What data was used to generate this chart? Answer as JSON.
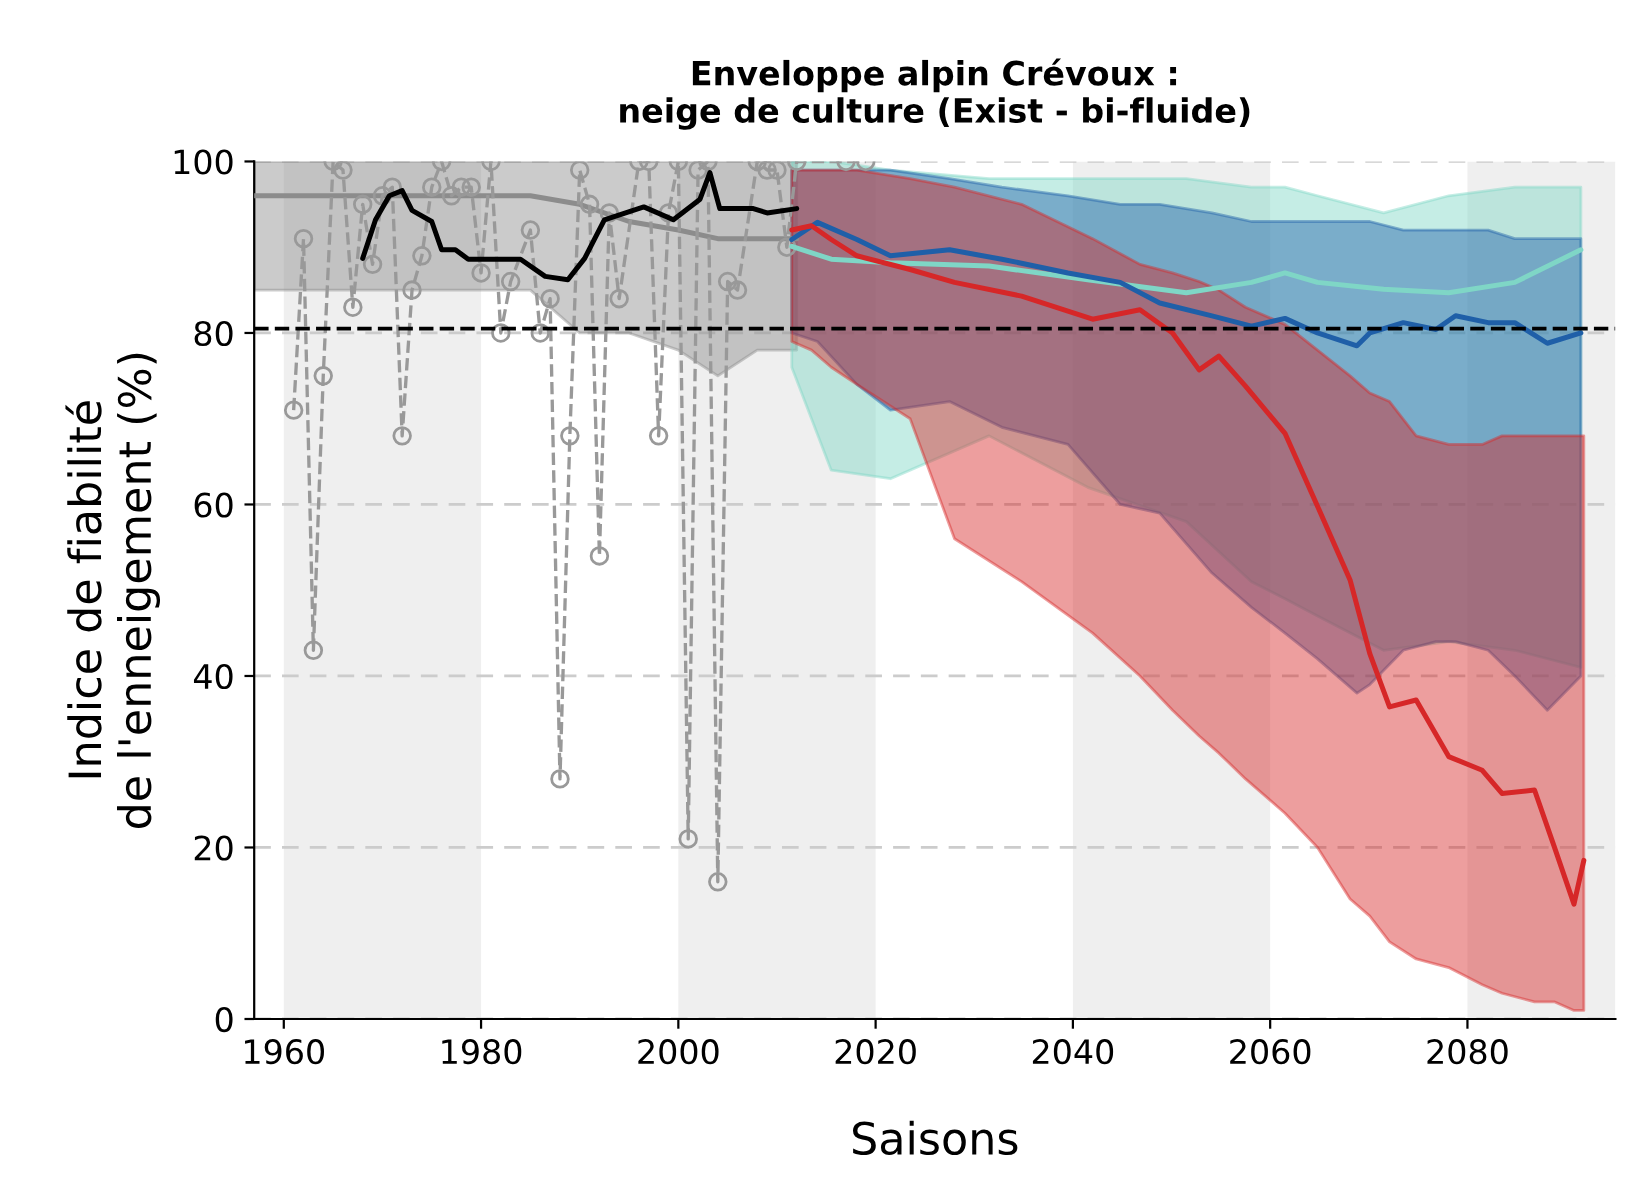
{
  "chart_data": {
    "type": "line",
    "title": "Enveloppe alpin Crévoux :\nneige de culture (Exist - bi-fluide)",
    "xlabel": "Saisons",
    "ylabel": "Indice de fiabilité\nde l'enneigement (%)",
    "xlim": [
      1957,
      2095
    ],
    "ylim": [
      0,
      100
    ],
    "xticks": [
      1960,
      1980,
      2000,
      2020,
      2040,
      2060,
      2080
    ],
    "yticks": [
      0,
      20,
      40,
      60,
      80,
      100
    ],
    "grid": "y",
    "legend": false,
    "bands": [
      {
        "axis": "x",
        "from": 1960,
        "to": 1980,
        "color": "#efefef"
      },
      {
        "axis": "x",
        "from": 2000,
        "to": 2020,
        "color": "#efefef"
      },
      {
        "axis": "x",
        "from": 2040,
        "to": 2060,
        "color": "#efefef"
      },
      {
        "axis": "x",
        "from": 2080,
        "to": 2095,
        "color": "#efefef"
      }
    ],
    "ref_lines": [
      {
        "axis": "y",
        "value": 80.5,
        "color": "#000000",
        "line_style": "dashed"
      }
    ],
    "series": [
      {
        "color": "#8c8c8c",
        "x": [
          1957,
          1970,
          1985,
          1990,
          1995,
          2000,
          2004,
          2008,
          2012
        ],
        "values": [
          96,
          96,
          96,
          95,
          93,
          92,
          91,
          91,
          91
        ],
        "lower": [
          85,
          85,
          85,
          80,
          80,
          78,
          75,
          78,
          78
        ],
        "upper": [
          100,
          100,
          100,
          100,
          100,
          100,
          100,
          100,
          100
        ]
      },
      {
        "color": "#999999",
        "marker": "circle",
        "line_style": "dashed",
        "x": [
          1961,
          1962,
          1963,
          1964,
          1965,
          1966,
          1967,
          1968,
          1969,
          1970,
          1971,
          1972,
          1973,
          1974,
          1975,
          1976,
          1977,
          1978,
          1979,
          1980,
          1981,
          1982,
          1983,
          1985,
          1986,
          1987,
          1988,
          1989,
          1990,
          1991,
          1992,
          1993,
          1994,
          1996,
          1997,
          1998,
          1999,
          2000,
          2001,
          2002,
          2003,
          2004,
          2005,
          2006,
          2008,
          2009,
          2010,
          2011,
          2012,
          2017,
          2019
        ],
        "values": [
          71,
          91,
          43,
          75,
          100,
          99,
          83,
          95,
          88,
          96,
          97,
          68,
          85,
          89,
          97,
          100,
          96,
          97,
          97,
          87,
          100,
          80,
          86,
          92,
          80,
          84,
          28,
          68,
          99,
          95,
          54,
          94,
          84,
          100,
          100,
          68,
          94,
          100,
          21,
          99,
          100,
          16,
          86,
          85,
          100,
          99,
          99,
          90,
          100,
          100,
          100
        ]
      },
      {
        "color": "#000000",
        "x": [
          1968,
          1969.3,
          1970.7,
          1972,
          1973,
          1975,
          1976,
          1977.4,
          1978.7,
          1984,
          1986.5,
          1988.8,
          1990.5,
          1992.5,
          1996.5,
          1999.5,
          2002.2,
          2003.2,
          2004.2,
          2007.6,
          2009,
          2012
        ],
        "values": [
          88.7,
          93.2,
          96,
          96.6,
          94.3,
          93,
          89.7,
          89.7,
          88.6,
          88.6,
          86.6,
          86.2,
          88.7,
          93.2,
          94.7,
          93.2,
          95.6,
          98.7,
          94.5,
          94.5,
          94,
          94.5
        ]
      },
      {
        "color": "#7fd6c6",
        "x": [
          2011.5,
          2015.5,
          2021.5,
          2031.5,
          2041.5,
          2051.5,
          2058.1,
          2061.5,
          2064.8,
          2071.5,
          2078.1,
          2084.8,
          2091.5
        ],
        "values": [
          90.1,
          88.6,
          88.2,
          87.8,
          86.2,
          84.7,
          85.9,
          87,
          85.9,
          85.1,
          84.7,
          85.9,
          89.7
        ],
        "lower": [
          76,
          64,
          63,
          68,
          62,
          58,
          51,
          49,
          47,
          43,
          44,
          43,
          41
        ],
        "upper": [
          100,
          100,
          99,
          98,
          98,
          98,
          97,
          97,
          96,
          94,
          96,
          97,
          97
        ]
      },
      {
        "color": "#1f5fa8",
        "x": [
          2011.5,
          2014.1,
          2018.1,
          2021.5,
          2027.5,
          2032.8,
          2039.5,
          2044.8,
          2048.8,
          2054.1,
          2058.1,
          2061.5,
          2064.8,
          2068.8,
          2070.1,
          2073.5,
          2076.8,
          2078.8,
          2082.1,
          2084.8,
          2088.1,
          2091.5
        ],
        "values": [
          90.9,
          92.9,
          90.9,
          89,
          89.7,
          88.6,
          87,
          85.9,
          83.5,
          82,
          80.8,
          81.7,
          80,
          78.5,
          80,
          81.2,
          80.4,
          82,
          81.2,
          81.2,
          78.8,
          80
        ],
        "lower": [
          80,
          79,
          74,
          71,
          72,
          69,
          67,
          60,
          59,
          52,
          48,
          45,
          42,
          38,
          39,
          43,
          44,
          44,
          43,
          40,
          36,
          40
        ],
        "upper": [
          99,
          99,
          99,
          99,
          98,
          97,
          96,
          95,
          95,
          94,
          93,
          93,
          93,
          93,
          93,
          92,
          92,
          92,
          92,
          91,
          91,
          91
        ]
      },
      {
        "color": "#d62728",
        "x": [
          2011.5,
          2013.5,
          2015.5,
          2018.1,
          2023.5,
          2028,
          2034.8,
          2042,
          2046.8,
          2050.1,
          2052.8,
          2054.8,
          2057.5,
          2061.5,
          2064.8,
          2068.1,
          2070.1,
          2072.1,
          2074.8,
          2078.1,
          2081.5,
          2083.5,
          2086.8,
          2088.8,
          2090.8,
          2091.8
        ],
        "values": [
          92,
          92.5,
          90.9,
          89,
          87.4,
          85.9,
          84.3,
          81.6,
          82.7,
          80,
          75.7,
          77.3,
          73.8,
          68.3,
          59.8,
          51.2,
          42.6,
          36.4,
          37.2,
          30.6,
          29,
          26.3,
          26.7,
          20.1,
          13.4,
          18.5
        ],
        "lower": [
          79,
          78,
          76,
          74,
          70,
          56,
          51,
          45,
          40,
          36,
          33,
          31,
          28,
          24,
          20,
          14,
          12,
          9,
          7,
          6,
          4,
          3,
          2,
          2,
          1,
          1
        ],
        "upper": [
          99,
          99,
          99,
          99,
          98,
          97,
          95,
          91,
          88,
          87,
          86,
          85,
          83,
          81,
          78,
          75,
          73,
          72,
          68,
          67,
          67,
          68,
          68,
          68,
          68,
          68
        ]
      }
    ]
  }
}
